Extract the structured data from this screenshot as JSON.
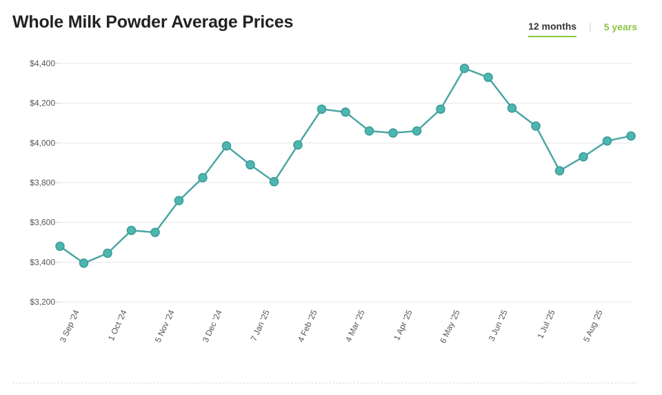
{
  "header": {
    "title": "Whole Milk Powder Average Prices"
  },
  "range_tabs": [
    {
      "label": "12 months",
      "active": true
    },
    {
      "label": "5 years",
      "active": false
    }
  ],
  "colors": {
    "line": "#4aa6a3",
    "marker": "#4db6b1",
    "marker_stroke": "#3a9a96",
    "grid": "#e6e6e6",
    "tab_accent": "#8cc63f"
  },
  "chart_data": {
    "type": "line",
    "title": "Whole Milk Powder Average Prices",
    "xlabel": "",
    "ylabel": "",
    "ylim": [
      3200,
      4400
    ],
    "yticks": [
      3200,
      3400,
      3600,
      3800,
      4000,
      4200,
      4400
    ],
    "ytick_labels": [
      "$3,200",
      "$3,400",
      "$3,600",
      "$3,800",
      "$4,000",
      "$4,200",
      "$4,400"
    ],
    "grid": true,
    "x_tick_labels": [
      "3 Sep '24",
      "1 Oct '24",
      "5 Nov '24",
      "3 Dec '24",
      "7 Jan '25",
      "4 Feb '25",
      "4 Mar '25",
      "1 Apr '25",
      "6 May '25",
      "3 Jun '25",
      "1 Jul '25",
      "5 Aug '25"
    ],
    "series": [
      {
        "values": [
          3480,
          3395,
          3445,
          3560,
          3550,
          3710,
          3825,
          3985,
          3890,
          3805,
          3990,
          4170,
          4155,
          4060,
          4050,
          4060,
          4170,
          4375,
          4330,
          4175,
          4085,
          3860,
          3930,
          4010,
          4035
        ]
      }
    ]
  }
}
